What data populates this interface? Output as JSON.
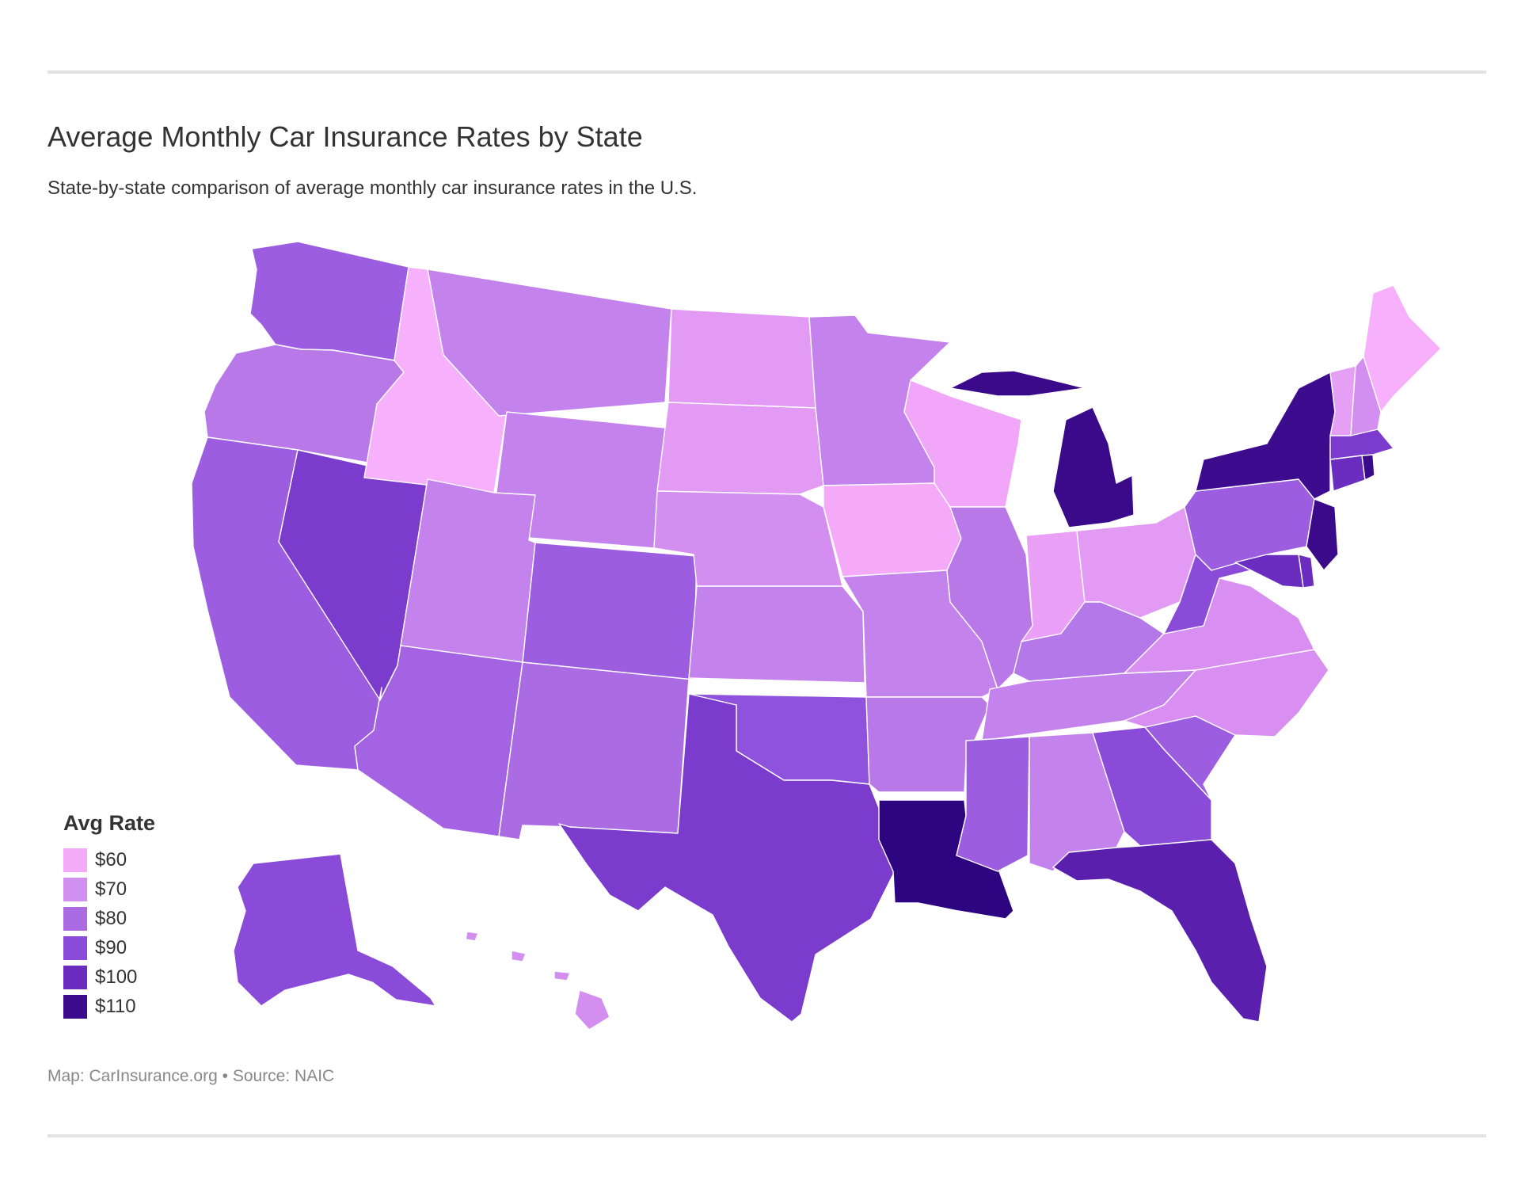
{
  "header": {
    "title": "Average Monthly Car Insurance Rates by State",
    "subtitle": "State-by-state comparison of average monthly car insurance rates in the U.S."
  },
  "legend": {
    "title": "Avg Rate",
    "items": [
      {
        "label": "$60",
        "color": "#f5aaf9"
      },
      {
        "label": "$70",
        "color": "#d18ff0"
      },
      {
        "label": "$80",
        "color": "#aa6be3"
      },
      {
        "label": "$90",
        "color": "#8a4bd9"
      },
      {
        "label": "$100",
        "color": "#6a2dbf"
      },
      {
        "label": "$110",
        "color": "#3d0b8e"
      }
    ]
  },
  "footer": {
    "credit": "Map: CarInsurance.org",
    "separator": "•",
    "source": "Source: NAIC"
  },
  "map_data": {
    "type": "choropleth",
    "region": "United States",
    "metric": "average monthly car insurance rate",
    "colors": {
      "WA": "#9c5de0",
      "OR": "#b878e8",
      "CA": "#9c5de0",
      "NV": "#7b3bcc",
      "ID": "#f7b0fb",
      "MT": "#c382ec",
      "WY": "#c382ec",
      "UT": "#c382ec",
      "AZ": "#a463e2",
      "NM": "#aa6be3",
      "CO": "#9c5de0",
      "ND": "#e39af4",
      "SD": "#e39af4",
      "NE": "#d48ef0",
      "KS": "#c382ec",
      "OK": "#8f52dc",
      "TX": "#7b3bcc",
      "MN": "#c382ec",
      "IA": "#f5aaf9",
      "MO": "#c382ec",
      "AR": "#b878e8",
      "LA": "#2e0580",
      "WI": "#f1a6f9",
      "IL": "#b878e8",
      "MI": "#3a0a8a",
      "IN": "#e9a0f6",
      "OH": "#e39af4",
      "KY": "#b478e8",
      "TN": "#c382ec",
      "MS": "#9c5de0",
      "AL": "#c382ec",
      "GA": "#8a4bd9",
      "FL": "#5a20ad",
      "SC": "#9c5de0",
      "NC": "#d98ff2",
      "VA": "#d98ff2",
      "WV": "#8a4bd9",
      "PA": "#9c5de0",
      "NY": "#3d0b8e",
      "NJ": "#3a0a8a",
      "DE": "#6a2dbf",
      "MD": "#6a2dbf",
      "CT": "#6a2dbf",
      "RI": "#3a0a8a",
      "MA": "#7b3bcc",
      "VT": "#e5a0f6",
      "NH": "#d48ef0",
      "ME": "#f7b0fb",
      "AK": "#8a4bd9",
      "HI": "#d48ef0"
    }
  }
}
